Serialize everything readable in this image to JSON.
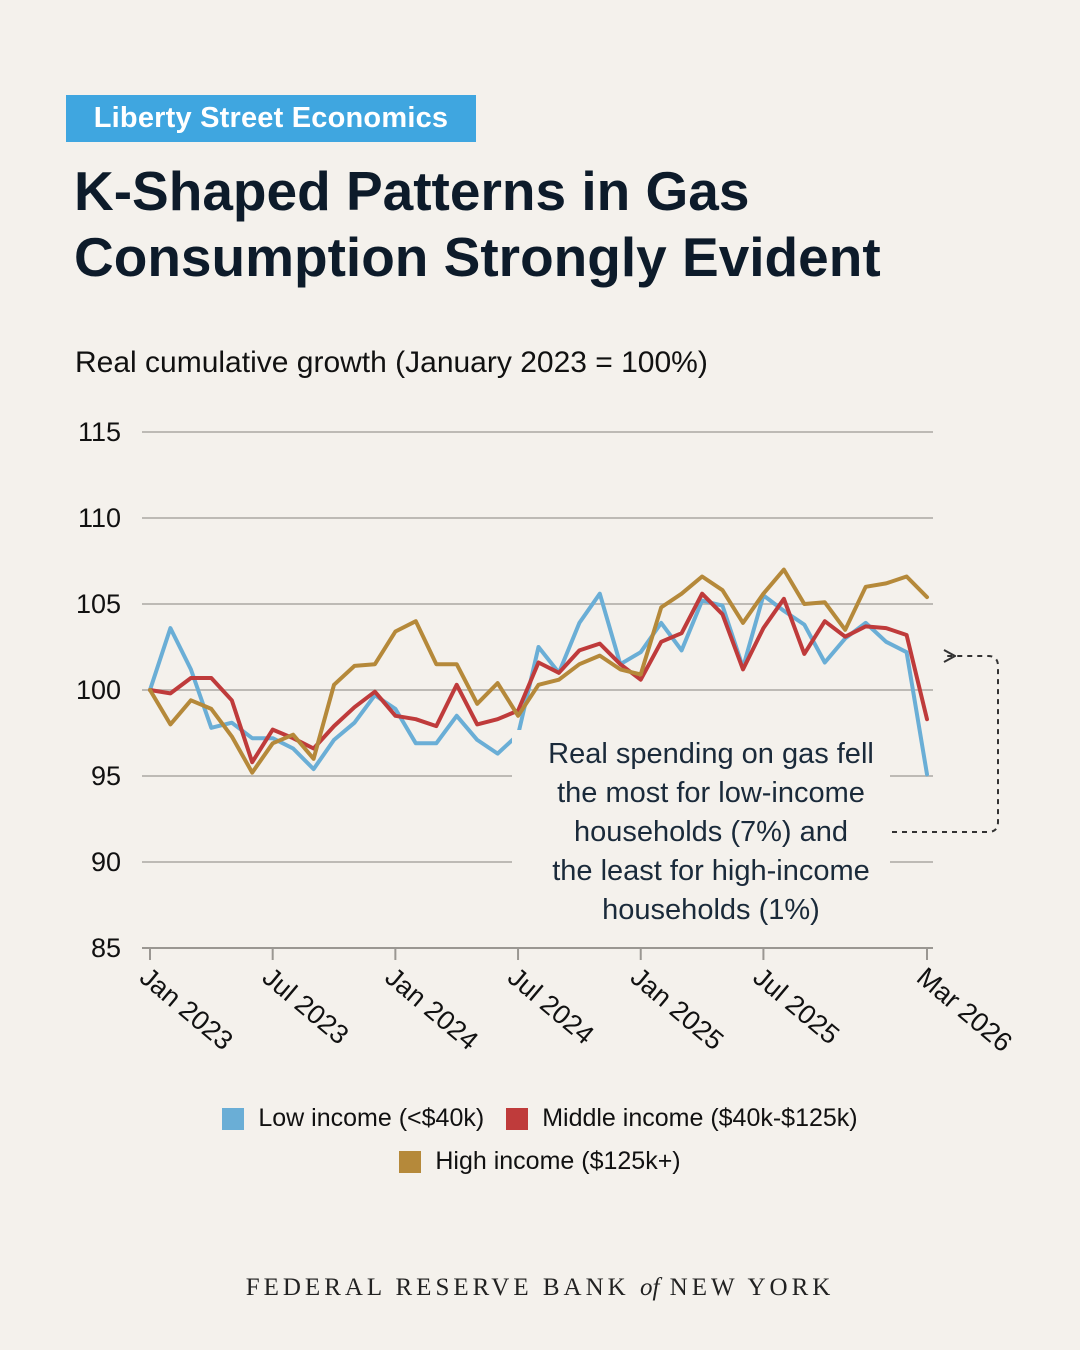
{
  "header": {
    "badge": "Liberty Street Economics",
    "title_line1": "K-Shaped Patterns in Gas",
    "title_line2": "Consumption Strongly Evident"
  },
  "footer": {
    "part1": "FEDERAL RESERVE BANK",
    "of": "of",
    "part2": "NEW YORK"
  },
  "colors": {
    "badge": "#3fa6e0",
    "low": "#6aaed6",
    "middle": "#bf3b3b",
    "high": "#b5893a",
    "grid": "#bdbab5"
  },
  "chart_data": {
    "type": "line",
    "title": "",
    "subtitle": "Real cumulative growth (January 2023 = 100%)",
    "ylim": [
      85,
      115
    ],
    "yticks": [
      85,
      90,
      95,
      100,
      105,
      110,
      115
    ],
    "grid": true,
    "x_tick_labels": [
      "Jan 2023",
      "Jul 2023",
      "Jan 2024",
      "Jul 2024",
      "Jan 2025",
      "Jul 2025",
      "Mar 2026"
    ],
    "x_tick_index": [
      0,
      6,
      12,
      18,
      24,
      30,
      38
    ],
    "x": [
      "2023-01",
      "2023-02",
      "2023-03",
      "2023-04",
      "2023-05",
      "2023-06",
      "2023-07",
      "2023-08",
      "2023-09",
      "2023-10",
      "2023-11",
      "2023-12",
      "2024-01",
      "2024-02",
      "2024-03",
      "2024-04",
      "2024-05",
      "2024-06",
      "2024-07",
      "2024-08",
      "2024-09",
      "2024-10",
      "2024-11",
      "2024-12",
      "2025-01",
      "2025-02",
      "2025-03",
      "2025-04",
      "2025-05",
      "2025-06",
      "2025-07",
      "2025-08",
      "2025-09",
      "2025-10",
      "2025-11",
      "2025-12",
      "2026-01",
      "2026-02",
      "2026-03"
    ],
    "legend_position": "bottom",
    "series": [
      {
        "name": "Low income (<$40k)",
        "color": "#6aaed6",
        "values": [
          100.0,
          103.6,
          101.2,
          97.8,
          98.1,
          97.2,
          97.2,
          96.6,
          95.4,
          97.1,
          98.1,
          99.7,
          98.9,
          96.9,
          96.9,
          98.5,
          97.1,
          96.3,
          97.4,
          102.5,
          101.0,
          103.9,
          105.6,
          101.5,
          102.2,
          103.9,
          102.3,
          105.2,
          104.9,
          101.3,
          105.5,
          104.6,
          103.8,
          101.6,
          103.0,
          103.9,
          102.8,
          102.2,
          95.1
        ]
      },
      {
        "name": "Middle income ($40k-$125k)",
        "color": "#bf3b3b",
        "values": [
          100.0,
          99.8,
          100.7,
          100.7,
          99.4,
          95.8,
          97.7,
          97.2,
          96.6,
          97.9,
          99.0,
          99.9,
          98.5,
          98.3,
          97.9,
          100.3,
          98.0,
          98.3,
          98.8,
          101.6,
          101.0,
          102.3,
          102.7,
          101.5,
          100.6,
          102.8,
          103.3,
          105.6,
          104.4,
          101.2,
          103.6,
          105.3,
          102.1,
          104.0,
          103.1,
          103.7,
          103.6,
          103.2,
          98.3
        ]
      },
      {
        "name": "High income ($125k+)",
        "color": "#b5893a",
        "values": [
          100.0,
          98.0,
          99.4,
          98.9,
          97.3,
          95.2,
          96.9,
          97.4,
          96.0,
          100.3,
          101.4,
          101.5,
          103.4,
          104.0,
          101.5,
          101.5,
          99.2,
          100.4,
          98.5,
          100.3,
          100.6,
          101.5,
          102.0,
          101.2,
          100.9,
          104.8,
          105.6,
          106.6,
          105.8,
          103.9,
          105.6,
          107.0,
          105.0,
          105.1,
          103.5,
          106.0,
          106.2,
          106.6,
          105.4
        ]
      }
    ],
    "annotation": "Real spending on gas fell the most for low-income households (7%) and the least for high-income households (1%)",
    "annotation_lines": [
      "Real spending on gas fell",
      "the most for low-income",
      "households (7%) and",
      "the least for high-income",
      "households (1%)"
    ]
  }
}
